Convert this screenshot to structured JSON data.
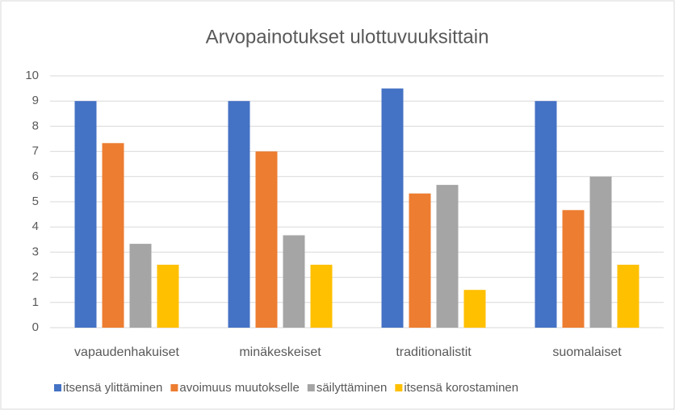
{
  "chart_data": {
    "type": "bar",
    "title": "Arvopainotukset ulottuvuuksittain",
    "categories": [
      "vapaudenhakuiset",
      "minäkeskeiset",
      "traditionalistit",
      "suomalaiset"
    ],
    "series": [
      {
        "name": "itsensä ylittäminen",
        "color": "#4472c4",
        "values": [
          9,
          9,
          9.5,
          9
        ]
      },
      {
        "name": "avoimuus muutokselle",
        "color": "#ed7d31",
        "values": [
          7.33,
          7,
          5.33,
          4.67
        ]
      },
      {
        "name": "säilyttäminen",
        "color": "#a5a5a5",
        "values": [
          3.33,
          3.67,
          5.67,
          6
        ]
      },
      {
        "name": "itsensä korostaminen",
        "color": "#ffc000",
        "values": [
          2.5,
          2.5,
          1.5,
          2.5
        ]
      }
    ],
    "ylim": [
      0,
      10
    ],
    "yticks": [
      0,
      1,
      2,
      3,
      4,
      5,
      6,
      7,
      8,
      9,
      10
    ],
    "grid": true,
    "legend": "bottom"
  }
}
